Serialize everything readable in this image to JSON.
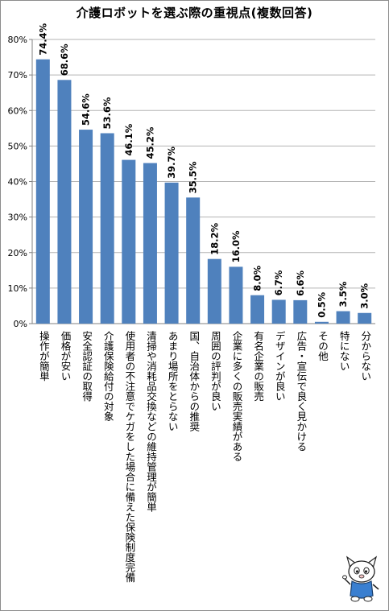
{
  "title": "介護ロボットを選ぶ際の重視点(複数回答)",
  "chart_data": {
    "type": "bar",
    "title": "介護ロボットを選ぶ際の重視点(複数回答)",
    "categories": [
      "操作が簡単",
      "価格が安い",
      "安全認証の取得",
      "介護保険給付の対象",
      "使用者の不注意でケガをした場合に備えた保険制度完備",
      "清掃や消耗品交換などの維持管理が簡単",
      "あまり場所をとらない",
      "国、自治体からの推奨",
      "周囲の評判が良い",
      "企業に多くの販売実績がある",
      "有名企業の販売",
      "デザインが良い",
      "広告・宣伝で良く見かける",
      "その他",
      "特にない",
      "分からない"
    ],
    "values": [
      74.4,
      68.6,
      54.6,
      53.6,
      46.1,
      45.2,
      39.7,
      35.5,
      18.2,
      16.0,
      8.0,
      6.7,
      6.6,
      0.5,
      3.5,
      3.0
    ],
    "value_labels": [
      "74.4%",
      "68.6%",
      "54.6%",
      "53.6%",
      "46.1%",
      "45.2%",
      "39.7%",
      "35.5%",
      "18.2%",
      "16.0%",
      "8.0%",
      "6.7%",
      "6.6%",
      "0.5%",
      "3.5%",
      "3.0%"
    ],
    "y_ticks": [
      "0%",
      "10%",
      "20%",
      "30%",
      "40%",
      "50%",
      "60%",
      "70%",
      "80%"
    ],
    "ylim": [
      0,
      80
    ],
    "grid": true,
    "bar_color": "#4f81bd",
    "grid_color": "#b3b3b3"
  }
}
